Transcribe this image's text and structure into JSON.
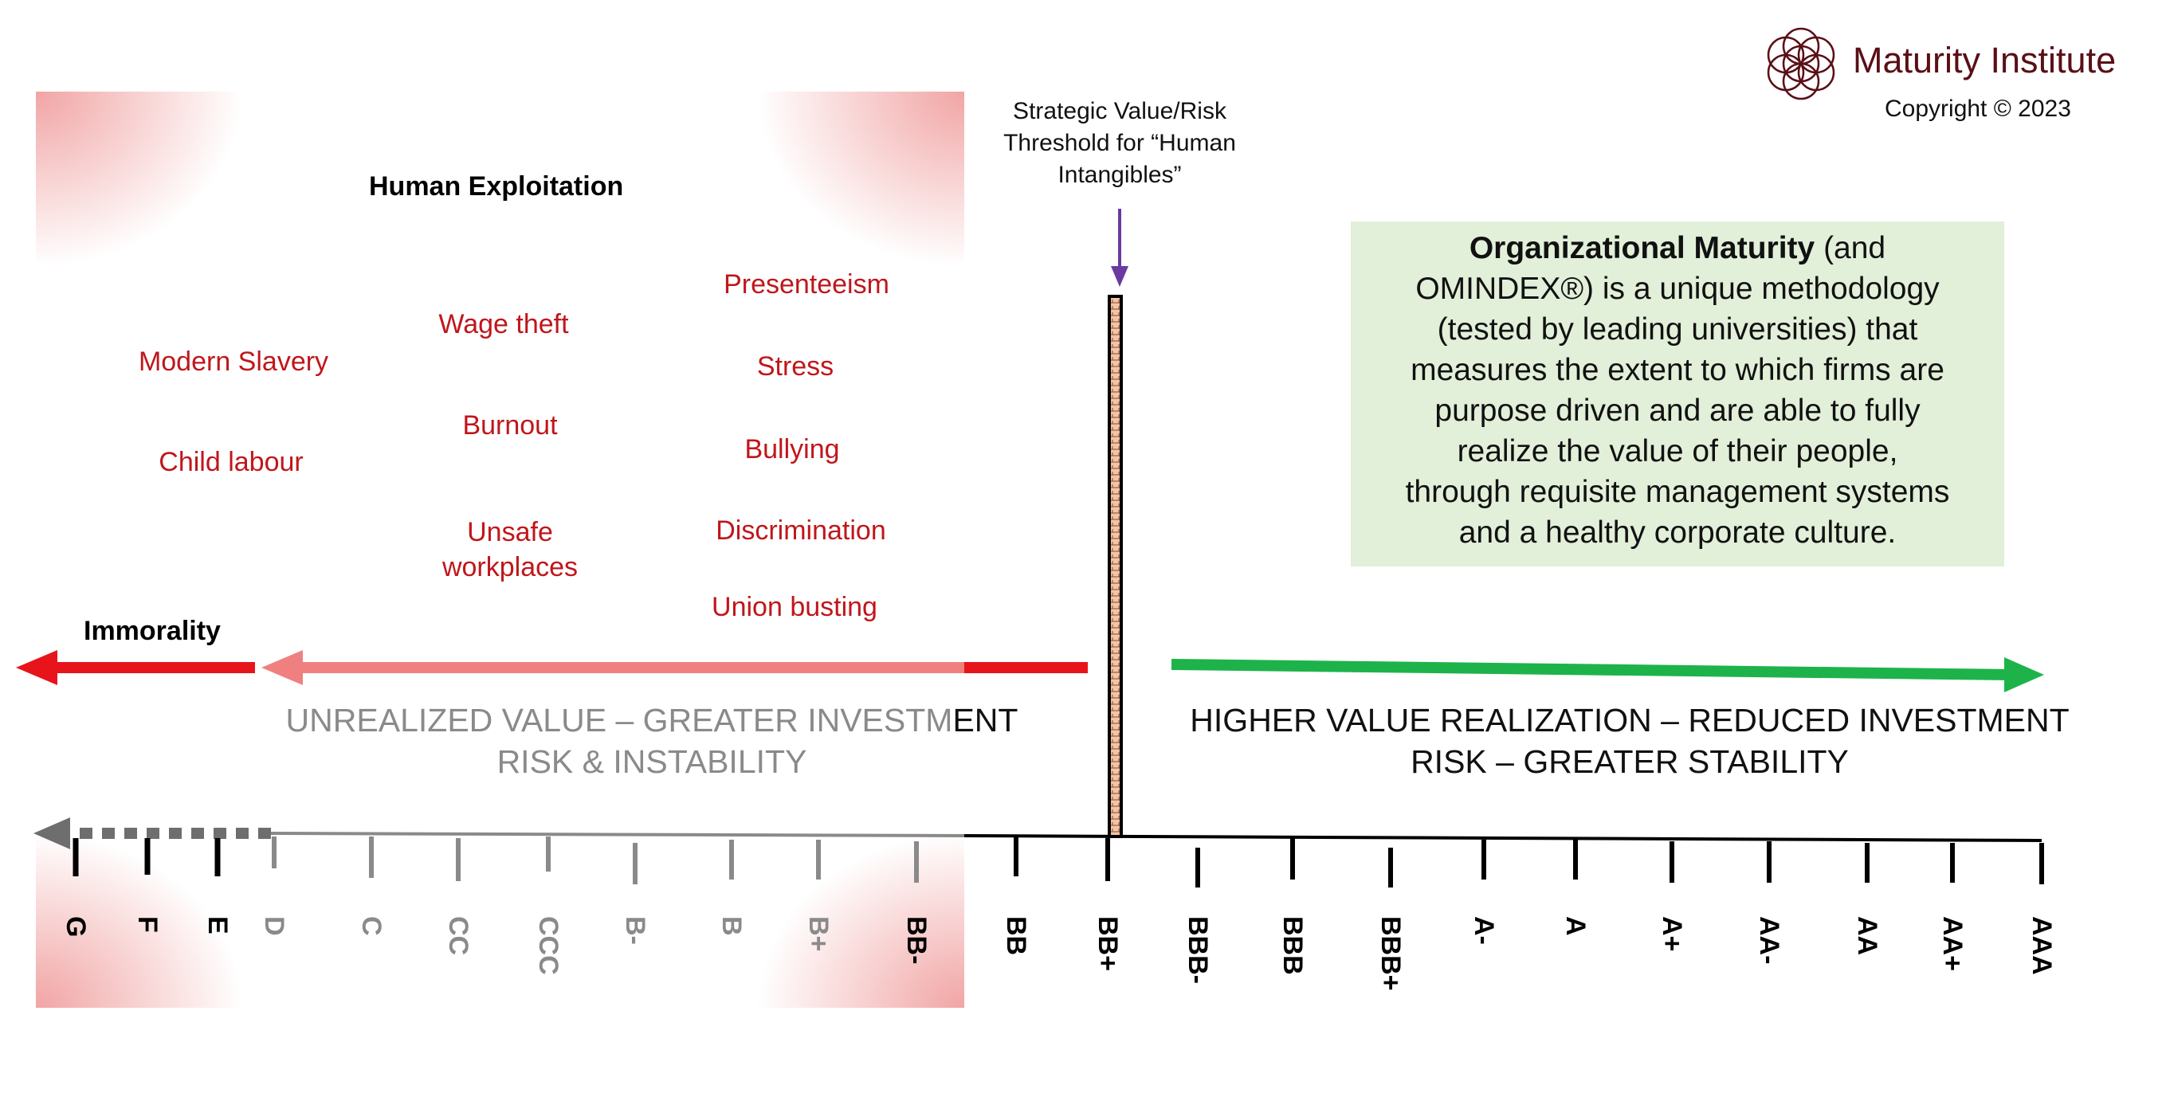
{
  "brand": {
    "name": "Maturity Institute",
    "copyright": "Copyright © 2023",
    "color": "#5a0f16"
  },
  "exploitation": {
    "title": "Human Exploitation",
    "terms": [
      "Modern Slavery",
      "Child labour",
      "Wage theft",
      "Burnout",
      "Unsafe",
      "workplaces",
      "Presenteeism",
      "Stress",
      "Bullying",
      "Discrimination",
      "Union busting"
    ],
    "immorality": "Immorality",
    "color": "#c0161b"
  },
  "threshold": {
    "line1": "Strategic Value/Risk",
    "line2": "Threshold for “Human",
    "line3": "Intangibles”",
    "arrow_color": "#6a3aa0"
  },
  "description": {
    "bold_lead": "Organizational Maturity",
    "line1_rest": " (and",
    "line2": "OMINDEX®) is a unique methodology",
    "line3": "(tested by leading universities) that",
    "line4": "measures the extent to which firms are",
    "line5": "purpose driven and are able to fully",
    "line6": "realize the value of their people,",
    "line7": "through requisite management systems",
    "line8": "and a healthy corporate culture.",
    "background": "#e2efd9"
  },
  "zones": {
    "left_line1_grey": "UNREALIZED VALUE – GREATER INVESTM",
    "left_line1_dark": "ENT",
    "left_line2": "RISK & INSTABILITY",
    "right_line1": "HIGHER VALUE REALIZATION – REDUCED INVESTMENT",
    "right_line2": "RISK – GREATER STABILITY",
    "left_arrow_color": "#f08080",
    "immorality_arrow_color": "#e8141b",
    "right_arrow_color": "#1db34a"
  },
  "scale": {
    "ratings": [
      "G",
      "F",
      "E",
      "D",
      "C",
      "CC",
      "CCC",
      "B-",
      "B",
      "B+",
      "BB-",
      "BB",
      "BB+",
      "BBB-",
      "BBB",
      "BBB+",
      "A-",
      "A",
      "A+",
      "AA-",
      "AA",
      "AA+",
      "AAA"
    ]
  }
}
